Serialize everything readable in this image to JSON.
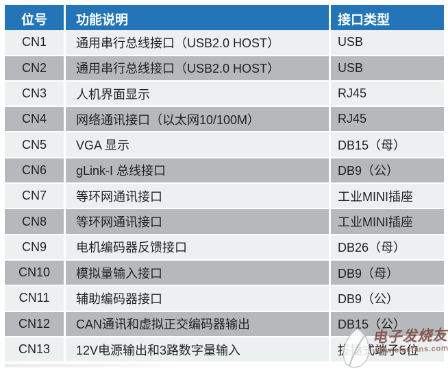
{
  "table": {
    "headers": [
      "位号",
      "功能说明",
      "接口类型"
    ],
    "rows": [
      {
        "id": "CN1",
        "desc": "通用串行总线接口（USB2.0 HOST）",
        "type": "USB"
      },
      {
        "id": "CN2",
        "desc": "通用串行总线接口（USB2.0 HOST）",
        "type": "USB"
      },
      {
        "id": "CN3",
        "desc": "人机界面显示",
        "type": "RJ45"
      },
      {
        "id": "CN4",
        "desc": "网络通讯接口（以太网10/100M）",
        "type": "RJ45"
      },
      {
        "id": "CN5",
        "desc": "VGA 显示",
        "type": "DB15（母）"
      },
      {
        "id": "CN6",
        "desc": "gLink-I 总线接口",
        "type": "DB9（公）"
      },
      {
        "id": "CN7",
        "desc": "等环网通讯接口",
        "type": "工业MINI插座"
      },
      {
        "id": "CN8",
        "desc": "等环网通讯接口",
        "type": "工业MINI插座"
      },
      {
        "id": "CN9",
        "desc": "电机编码器反馈接口",
        "type": "DB26（母）"
      },
      {
        "id": "CN10",
        "desc": "模拟量输入接口",
        "type": "DB9（母）"
      },
      {
        "id": "CN11",
        "desc": "辅助编码器接口",
        "type": "DB9（公）"
      },
      {
        "id": "CN12",
        "desc": "CAN通讯和虚拟正交编码器输出",
        "type": "DB15（公）"
      },
      {
        "id": "CN13",
        "desc": "12V电源输出和3路数字量输入",
        "type": "拔插式端子5位"
      }
    ]
  },
  "watermark": {
    "site_name": "电子发烧友",
    "site_url": "www.elecfans.com"
  },
  "colors": {
    "header_bg": "#2375B8",
    "header_text": "#FFFFFF",
    "row_light": "#EDF0F1",
    "row_dark": "#B5B9BB",
    "body_text": "#222222",
    "watermark_text": "#703026"
  }
}
